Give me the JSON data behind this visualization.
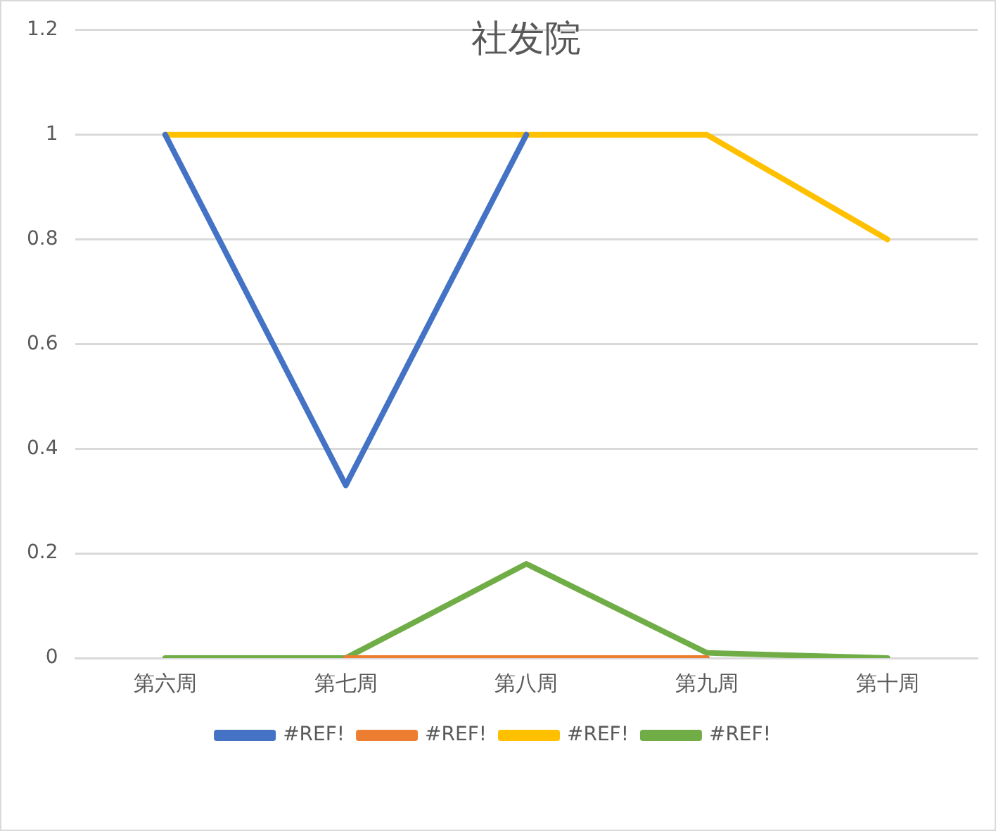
{
  "chart_data": {
    "type": "line",
    "title": "社发院",
    "categories": [
      "第六周",
      "第七周",
      "第八周",
      "第九周",
      "第十周"
    ],
    "series": [
      {
        "name": "#REF!",
        "color": "#4472c4",
        "values": [
          1,
          0.33,
          1,
          null,
          null
        ]
      },
      {
        "name": "#REF!",
        "color": "#ed7d31",
        "values": [
          null,
          0,
          0,
          0,
          null
        ]
      },
      {
        "name": "#REF!",
        "color": "#ffc000",
        "values": [
          1,
          1,
          1,
          1,
          0.8
        ]
      },
      {
        "name": "#REF!",
        "color": "#70ad47",
        "values": [
          0,
          0,
          0.18,
          0.01,
          0
        ]
      }
    ],
    "ylim": [
      0,
      1.2
    ],
    "yticks": [
      0,
      0.2,
      0.4,
      0.6,
      0.8,
      1,
      1.2
    ],
    "grid": "y",
    "legend": "bottom",
    "marker": "none",
    "line_style": "solid"
  }
}
